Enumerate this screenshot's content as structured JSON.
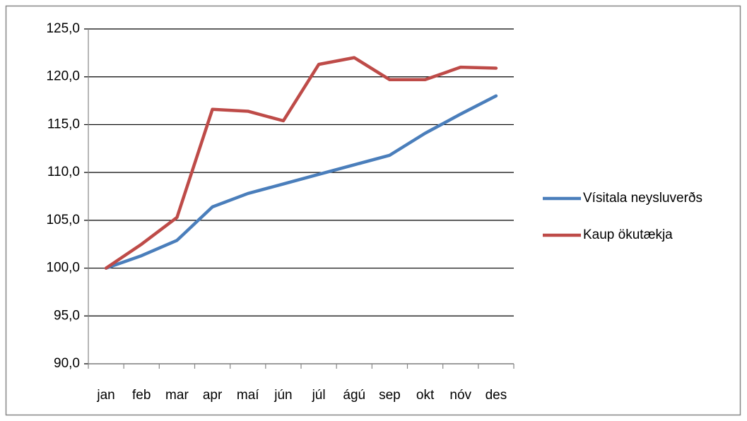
{
  "chart_data": {
    "type": "line",
    "categories": [
      "jan",
      "feb",
      "mar",
      "apr",
      "maí",
      "jún",
      "júl",
      "ágú",
      "sep",
      "okt",
      "nóv",
      "des"
    ],
    "series": [
      {
        "name": "Vísitala neysluverðs",
        "color": "#4a7ebb",
        "values": [
          100.0,
          101.3,
          102.9,
          106.4,
          107.8,
          108.8,
          109.8,
          110.8,
          111.8,
          114.1,
          116.1,
          118.0
        ]
      },
      {
        "name": "Kaup ökutækja",
        "color": "#be4b48",
        "values": [
          100.0,
          102.5,
          105.3,
          116.6,
          116.4,
          115.4,
          121.3,
          122.0,
          119.7,
          119.7,
          121.0,
          120.9
        ]
      }
    ],
    "ylim": [
      90,
      125
    ],
    "yticks": [
      {
        "value": 90,
        "label": "90,0"
      },
      {
        "value": 95,
        "label": "95,0"
      },
      {
        "value": 100,
        "label": "100,0"
      },
      {
        "value": 105,
        "label": "105,0"
      },
      {
        "value": 110,
        "label": "110,0"
      },
      {
        "value": 115,
        "label": "115,0"
      },
      {
        "value": 120,
        "label": "120,0"
      },
      {
        "value": 125,
        "label": "125,0"
      }
    ],
    "grid": true,
    "legend": "right"
  }
}
